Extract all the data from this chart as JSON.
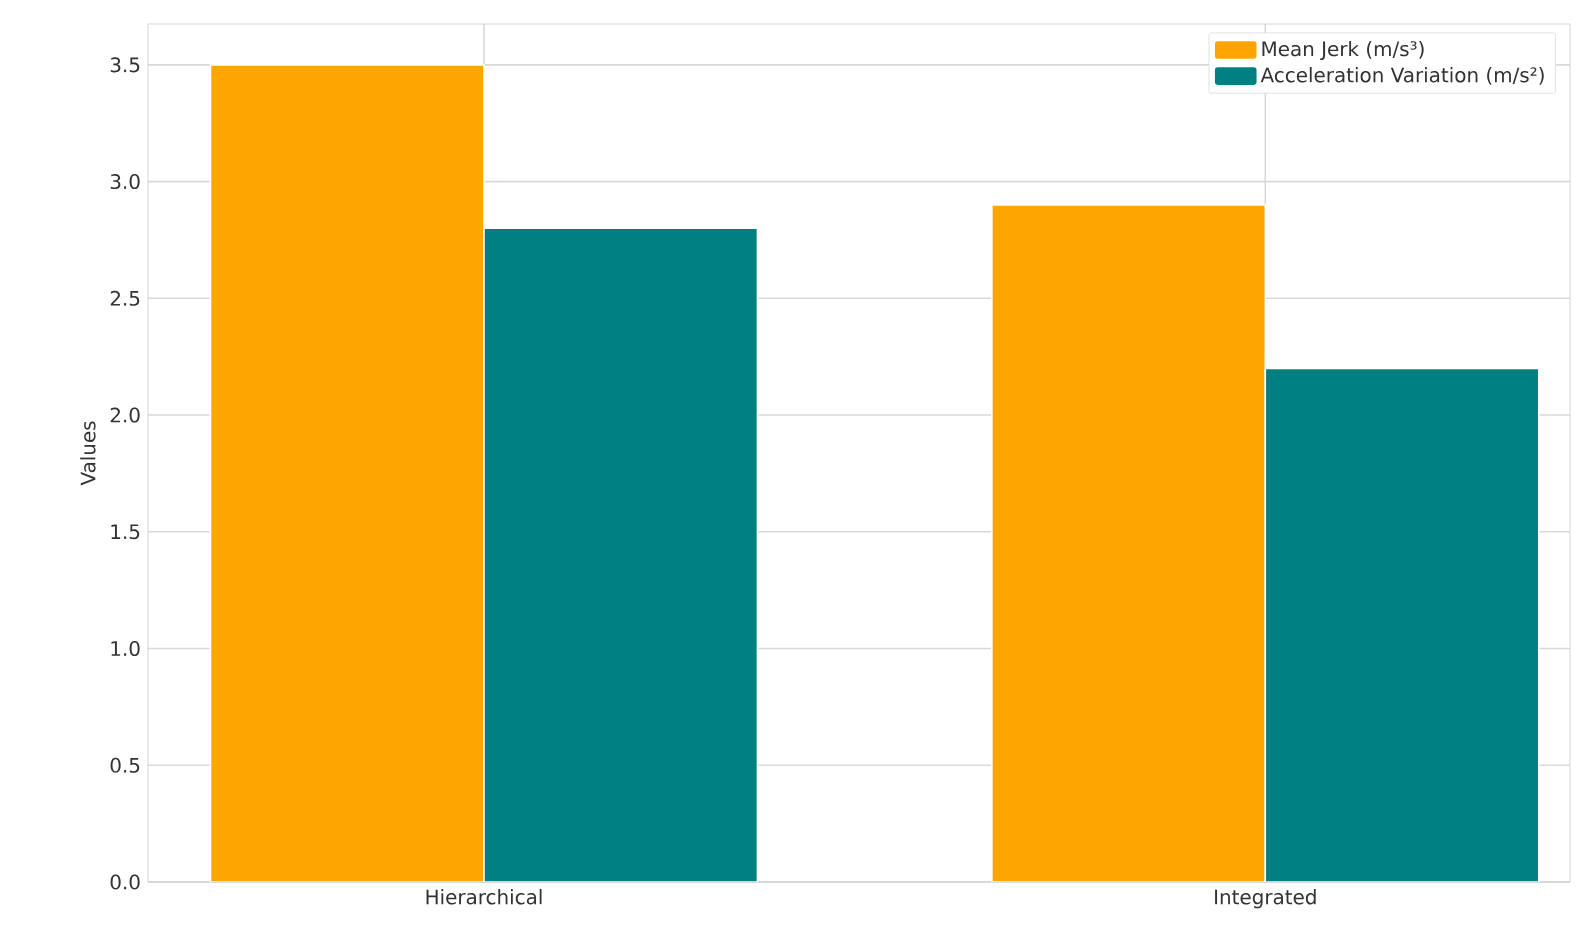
{
  "chart_data": {
    "type": "bar",
    "ylabel": "Values",
    "categories": [
      "Hierarchical",
      "Integrated"
    ],
    "series": [
      {
        "name": "Mean Jerk (m/s³)",
        "color": "#ffa500",
        "values": [
          3.5,
          2.9
        ]
      },
      {
        "name": "Acceleration Variation (m/s²)",
        "color": "#008080",
        "values": [
          2.8,
          2.2
        ]
      }
    ],
    "ylim": [
      0,
      3.675
    ],
    "yticks": [
      {
        "value": 0,
        "label": "0.0"
      },
      0.5,
      {
        "value": 1,
        "label": "1.0"
      },
      1.5,
      {
        "value": 2,
        "label": "2.0"
      },
      2.5,
      {
        "value": 3,
        "label": "3.0"
      },
      3.5
    ],
    "grid": true,
    "legend": "top right"
  }
}
